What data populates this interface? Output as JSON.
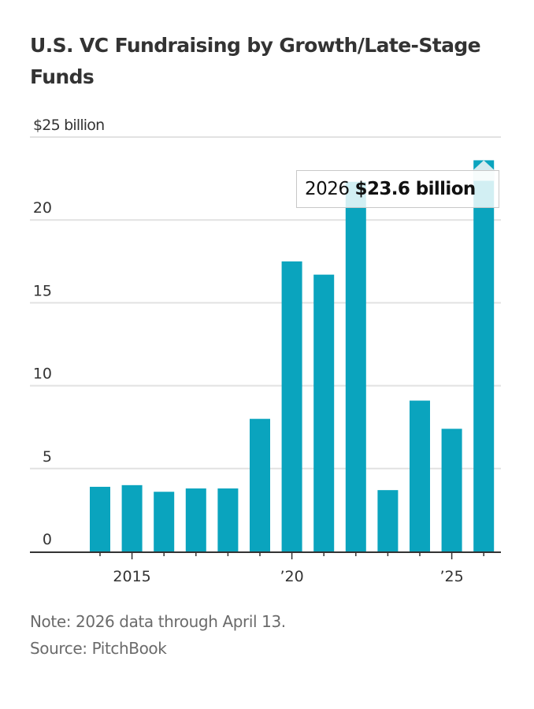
{
  "chart_data": {
    "type": "bar",
    "title": "U.S. VC Fundraising by Growth/Late-Stage Funds",
    "unit_label": "$25 billion",
    "xlabel": "",
    "ylabel": "",
    "ylim": [
      0,
      25
    ],
    "yticks": [
      {
        "value": 0,
        "label": "0"
      },
      {
        "value": 5,
        "label": "5"
      },
      {
        "value": 10,
        "label": "10"
      },
      {
        "value": 15,
        "label": "15"
      },
      {
        "value": 20,
        "label": "20"
      },
      {
        "value": 25,
        "label": "$25 billion"
      }
    ],
    "categories": [
      "2014",
      "2015",
      "2016",
      "2017",
      "2018",
      "2019",
      "2020",
      "2021",
      "2022",
      "2023",
      "2024",
      "2025",
      "2026"
    ],
    "values": [
      3.9,
      4.0,
      3.6,
      3.8,
      3.8,
      8.0,
      17.5,
      16.7,
      22.3,
      3.7,
      9.1,
      7.4,
      23.6
    ],
    "xtick_labels": [
      {
        "category": "2015",
        "label": "2015"
      },
      {
        "category": "2020",
        "label": "’20"
      },
      {
        "category": "2025",
        "label": "’25"
      }
    ],
    "grid": true,
    "bar_color": "#0aa4be",
    "highlight_color": "#d4ebef",
    "tooltip": {
      "category": "2026",
      "year_label": "2026",
      "value_label": "$23.6 billion"
    },
    "note": "Note: 2026 data through April 13.",
    "source": "Source: PitchBook"
  }
}
